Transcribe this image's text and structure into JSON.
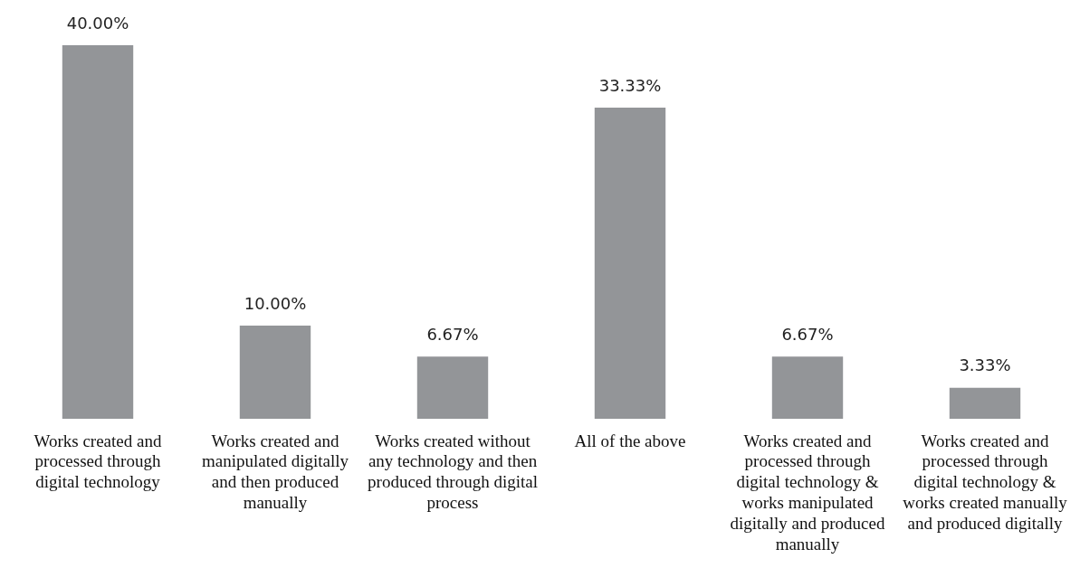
{
  "chart_data": {
    "type": "bar",
    "categories": [
      "Works created and processed through digital technology",
      "Works created and manipulated digitally and then produced manually",
      "Works created without any technology and then produced through digital process",
      "All of the above",
      "Works created and processed through digital technology & works manipulated digitally and produced manually",
      "Works created and processed through digital technology & works created manually and produced digitally"
    ],
    "values": [
      40,
      10,
      6.67,
      33.33,
      6.67,
      3.33
    ],
    "value_labels": [
      "40.00%",
      "10.00%",
      "6.67%",
      "33.33%",
      "6.67%",
      "3.33%"
    ],
    "color": "#939598",
    "grid": false,
    "legend": false
  }
}
